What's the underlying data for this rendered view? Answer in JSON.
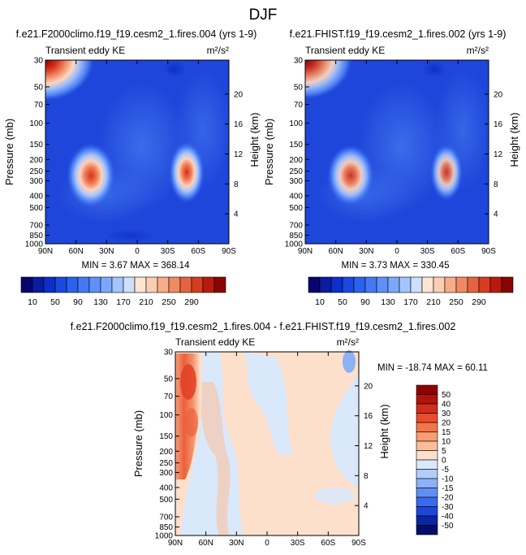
{
  "figure": {
    "title": "DJF",
    "unit_label": "m²/s²",
    "x_ticks": [
      "90N",
      "60N",
      "30N",
      "0",
      "30S",
      "60S",
      "90S"
    ],
    "p_ticks": [
      "30",
      "50",
      "70",
      "100",
      "150",
      "200",
      "250",
      "300",
      "400",
      "500",
      "700",
      "850",
      "1000"
    ],
    "h_ticks": [
      "20",
      "16",
      "12",
      "8",
      "4"
    ]
  },
  "chart_data": [
    {
      "type": "heatmap",
      "title": "f.e21.F2000climo.f19_f19.cesm2_1.fires.004 (yrs 1-9)",
      "subtitle": "Transient eddy KE",
      "ylabel": "Pressure (mb)",
      "y2label": "Height (km)",
      "min_text": "MIN =  3.67   MAX = 368.14",
      "min": 3.67,
      "max": 368.14,
      "x": [
        -90,
        -60,
        -30,
        0,
        30,
        60,
        90
      ],
      "ylim": [
        1000,
        30
      ],
      "features": [
        {
          "lat": -84,
          "p": 30,
          "value": 330,
          "desc": "polar stratospheric maximum"
        },
        {
          "lat": -42,
          "p": 290,
          "value": 330,
          "desc": "NH subtropical jet eddy max"
        },
        {
          "lat": 48,
          "p": 280,
          "value": 290,
          "desc": "SH midlatitude eddy max"
        }
      ]
    },
    {
      "type": "heatmap",
      "title": "f.e21.FHIST.f19_f19.cesm2_1.fires.002 (yrs 1-9)",
      "subtitle": "Transient eddy KE",
      "ylabel": "Pressure (mb)",
      "y2label": "Height (km)",
      "min_text": "MIN =  3.73   MAX = 330.45",
      "min": 3.73,
      "max": 330.45,
      "x": [
        -90,
        -60,
        -30,
        0,
        30,
        60,
        90
      ],
      "ylim": [
        1000,
        30
      ],
      "features": [
        {
          "lat": -84,
          "p": 30,
          "value": 310,
          "desc": "polar stratospheric maximum"
        },
        {
          "lat": -42,
          "p": 290,
          "value": 310,
          "desc": "NH subtropical jet eddy max"
        },
        {
          "lat": 48,
          "p": 280,
          "value": 280,
          "desc": "SH midlatitude eddy max"
        }
      ]
    },
    {
      "type": "heatmap",
      "title": "f.e21.F2000climo.f19_f19.cesm2_1.fires.004 - f.e21.FHIST.f19_f19.cesm2_1.fires.002",
      "subtitle": "Transient eddy KE",
      "ylabel": "Pressure (mb)",
      "y2label": "Height (km)",
      "min_text": "MIN = -18.74   MAX =  60.11",
      "min": -18.74,
      "max": 60.11,
      "x": [
        -90,
        -60,
        -30,
        0,
        30,
        60,
        90
      ],
      "ylim": [
        1000,
        30
      ]
    }
  ],
  "colorbars": {
    "abs": {
      "labels": [
        "10",
        "50",
        "90",
        "130",
        "170",
        "210",
        "250",
        "290"
      ],
      "colors": [
        "#08046f",
        "#0a1ca0",
        "#0d2fc9",
        "#1a48e0",
        "#2a62ee",
        "#4479f5",
        "#5e90fa",
        "#7aa8fc",
        "#a4c4fd",
        "#cddffe",
        "#fde4d3",
        "#fbcdb2",
        "#f7ad89",
        "#f18a63",
        "#e6633f",
        "#d53c20",
        "#b81b0d",
        "#8a0402"
      ]
    },
    "diff": {
      "labels": [
        "50",
        "40",
        "30",
        "20",
        "15",
        "10",
        "5",
        "0",
        "-5",
        "-10",
        "-15",
        "-20",
        "-30",
        "-40",
        "-50"
      ],
      "colors": [
        "#8e0000",
        "#b11309",
        "#d22c1a",
        "#ec4b2e",
        "#f57549",
        "#f99c70",
        "#fbbd98",
        "#fde0cc",
        "#d9e8fb",
        "#b3cdf9",
        "#8cb1f6",
        "#628ef1",
        "#3b6aec",
        "#1b46d8",
        "#0c25a4",
        "#040e6a"
      ]
    }
  }
}
